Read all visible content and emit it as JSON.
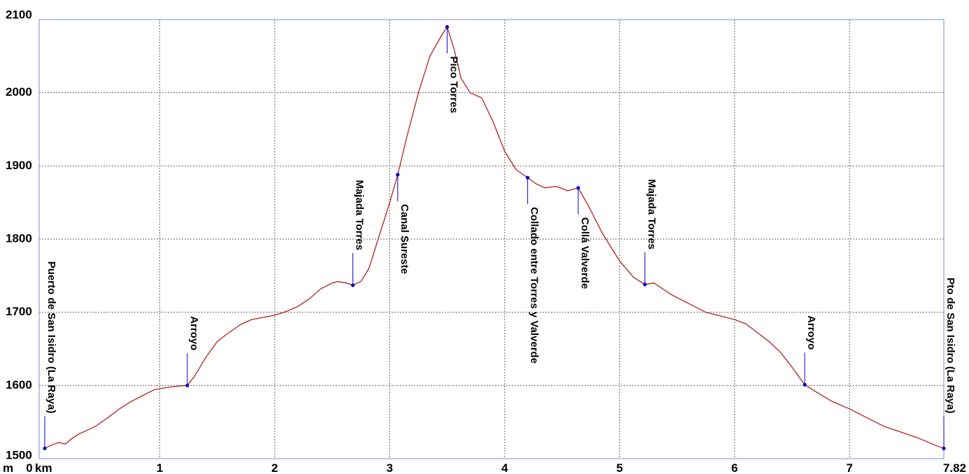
{
  "chart_data": {
    "type": "line",
    "title": "",
    "xlabel": "km",
    "ylabel": "m",
    "x_unit_label": "km",
    "y_unit_label": "m",
    "xlim": [
      0,
      7.82
    ],
    "ylim": [
      1500,
      2100
    ],
    "x_ticks": [
      {
        "value": 0,
        "label": "0"
      },
      {
        "value": 1,
        "label": "1"
      },
      {
        "value": 2,
        "label": "2"
      },
      {
        "value": 3,
        "label": "3"
      },
      {
        "value": 4,
        "label": "4"
      },
      {
        "value": 5,
        "label": "5"
      },
      {
        "value": 6,
        "label": "6"
      },
      {
        "value": 7,
        "label": "7"
      },
      {
        "value": 7.82,
        "label": "7.82"
      }
    ],
    "y_ticks": [
      {
        "value": 1500,
        "label": "1500"
      },
      {
        "value": 1600,
        "label": "1600"
      },
      {
        "value": 1700,
        "label": "1700"
      },
      {
        "value": 1800,
        "label": "1800"
      },
      {
        "value": 1900,
        "label": "1900"
      },
      {
        "value": 2000,
        "label": "2000"
      },
      {
        "value": 2100,
        "label": "2100"
      }
    ],
    "grid": true,
    "colors": {
      "line": "#b22222",
      "marker": "#0000cc",
      "grid": "#666666",
      "frame": "#7a8fc8"
    },
    "series": [
      {
        "x": [
          0,
          0.05,
          0.12,
          0.18,
          0.24,
          0.3,
          0.36,
          0.45,
          0.55,
          0.65,
          0.75,
          0.85,
          0.95,
          1.05,
          1.15,
          1.24,
          1.3,
          1.4,
          1.5,
          1.6,
          1.7,
          1.8,
          1.9,
          2.0,
          2.1,
          2.2,
          2.3,
          2.4,
          2.5,
          2.55,
          2.62,
          2.68,
          2.75,
          2.82,
          2.9,
          3.0,
          3.07,
          3.15,
          3.25,
          3.35,
          3.45,
          3.5,
          3.56,
          3.62,
          3.7,
          3.8,
          3.9,
          4.0,
          4.1,
          4.2,
          4.28,
          4.35,
          4.45,
          4.55,
          4.64,
          4.72,
          4.85,
          5.0,
          5.12,
          5.22,
          5.3,
          5.45,
          5.6,
          5.75,
          5.9,
          6.0,
          6.1,
          6.2,
          6.3,
          6.4,
          6.5,
          6.61,
          6.7,
          6.85,
          7.0,
          7.15,
          7.3,
          7.45,
          7.6,
          7.75,
          7.82
        ],
        "y": [
          1514,
          1518,
          1522,
          1520,
          1528,
          1534,
          1538,
          1545,
          1556,
          1568,
          1578,
          1586,
          1594,
          1597,
          1599,
          1600,
          1612,
          1638,
          1660,
          1672,
          1683,
          1690,
          1693,
          1696,
          1701,
          1708,
          1718,
          1732,
          1740,
          1742,
          1740,
          1737,
          1742,
          1760,
          1800,
          1850,
          1888,
          1940,
          2000,
          2050,
          2078,
          2090,
          2060,
          2020,
          2000,
          1993,
          1960,
          1920,
          1895,
          1884,
          1875,
          1870,
          1872,
          1866,
          1870,
          1848,
          1808,
          1770,
          1748,
          1738,
          1740,
          1724,
          1712,
          1700,
          1694,
          1690,
          1684,
          1672,
          1660,
          1645,
          1625,
          1601,
          1592,
          1578,
          1568,
          1556,
          1544,
          1536,
          1528,
          1518,
          1514
        ]
      }
    ],
    "waypoints": [
      {
        "name": "Puerto de San Isidro (La Raya)",
        "x": 0.0,
        "y": 1514
      },
      {
        "name": "Arroyo",
        "x": 1.24,
        "y": 1600
      },
      {
        "name": "Majada Torres",
        "x": 2.68,
        "y": 1737
      },
      {
        "name": "Canal Sureste",
        "x": 3.07,
        "y": 1888
      },
      {
        "name": "Pico Torres",
        "x": 3.5,
        "y": 2090
      },
      {
        "name": "Collado entre Torres y Valverde",
        "x": 4.2,
        "y": 1884
      },
      {
        "name": "Collá  Valverde",
        "x": 4.64,
        "y": 1870
      },
      {
        "name": "Majada Torres",
        "x": 5.22,
        "y": 1738
      },
      {
        "name": "Arroyo",
        "x": 6.61,
        "y": 1601
      },
      {
        "name": "Pto de San Isidro (La Raya)",
        "x": 7.82,
        "y": 1514
      }
    ]
  }
}
